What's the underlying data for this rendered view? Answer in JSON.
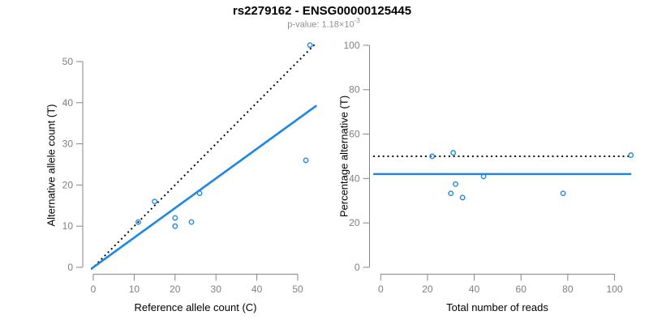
{
  "header": {
    "title": "rs2279162 - ENSG00000125445",
    "pvalue_prefix": "p-value: 1.18×10",
    "pvalue_exponent": "-3"
  },
  "colors": {
    "accent_blue": "#1E87E5",
    "line_black": "#000000",
    "axis_gray": "#858585",
    "tick_label_gray": "#7f7f7f",
    "subtitle_gray": "#8f8f8f",
    "background": "#ffffff"
  },
  "chart_data": [
    {
      "type": "scatter",
      "panel": "allele-counts",
      "xlabel": "Reference allele count (C)",
      "ylabel": "Alternative allele count (T)",
      "xticks": [
        0,
        10,
        20,
        30,
        40,
        50
      ],
      "yticks": [
        0,
        10,
        20,
        30,
        40,
        50
      ],
      "xlim": [
        -2,
        56
      ],
      "ylim": [
        -2,
        56
      ],
      "grid": false,
      "points": [
        {
          "x": 11,
          "y": 11
        },
        {
          "x": 15,
          "y": 16
        },
        {
          "x": 20,
          "y": 12
        },
        {
          "x": 20,
          "y": 10
        },
        {
          "x": 24,
          "y": 11
        },
        {
          "x": 26,
          "y": 18
        },
        {
          "x": 52,
          "y": 26
        },
        {
          "x": 53,
          "y": 54
        }
      ],
      "lines": [
        {
          "name": "identity-line",
          "style": "dotted",
          "color": "black",
          "slope": 1,
          "intercept": 0,
          "span": [
            -0.5,
            54.5
          ]
        },
        {
          "name": "fit-line",
          "style": "solid",
          "color": "blue",
          "slope": 0.72,
          "intercept": 0,
          "span": [
            -0.5,
            54.6
          ]
        }
      ]
    },
    {
      "type": "scatter",
      "panel": "percentage-alternative",
      "xlabel": "Total number of reads",
      "ylabel": "Percentage alternative (T)",
      "xticks": [
        0,
        20,
        40,
        60,
        80,
        100
      ],
      "yticks": [
        0,
        20,
        40,
        60,
        80,
        100
      ],
      "xlim": [
        -4,
        111
      ],
      "ylim": [
        0,
        100
      ],
      "grid": false,
      "points": [
        {
          "x": 22,
          "y": 50.0
        },
        {
          "x": 30,
          "y": 33.3
        },
        {
          "x": 31,
          "y": 51.6
        },
        {
          "x": 32,
          "y": 37.5
        },
        {
          "x": 35,
          "y": 31.4
        },
        {
          "x": 44,
          "y": 40.9
        },
        {
          "x": 78,
          "y": 33.3
        },
        {
          "x": 107,
          "y": 50.5
        }
      ],
      "lines": [
        {
          "name": "fifty-percent-line",
          "style": "dotted",
          "color": "black",
          "slope": 0,
          "intercept": 50,
          "span": [
            -3.2,
            107.2
          ]
        },
        {
          "name": "fit-line",
          "style": "solid",
          "color": "blue",
          "slope": 0,
          "intercept": 42,
          "span": [
            -3.2,
            107.2
          ]
        }
      ]
    }
  ]
}
